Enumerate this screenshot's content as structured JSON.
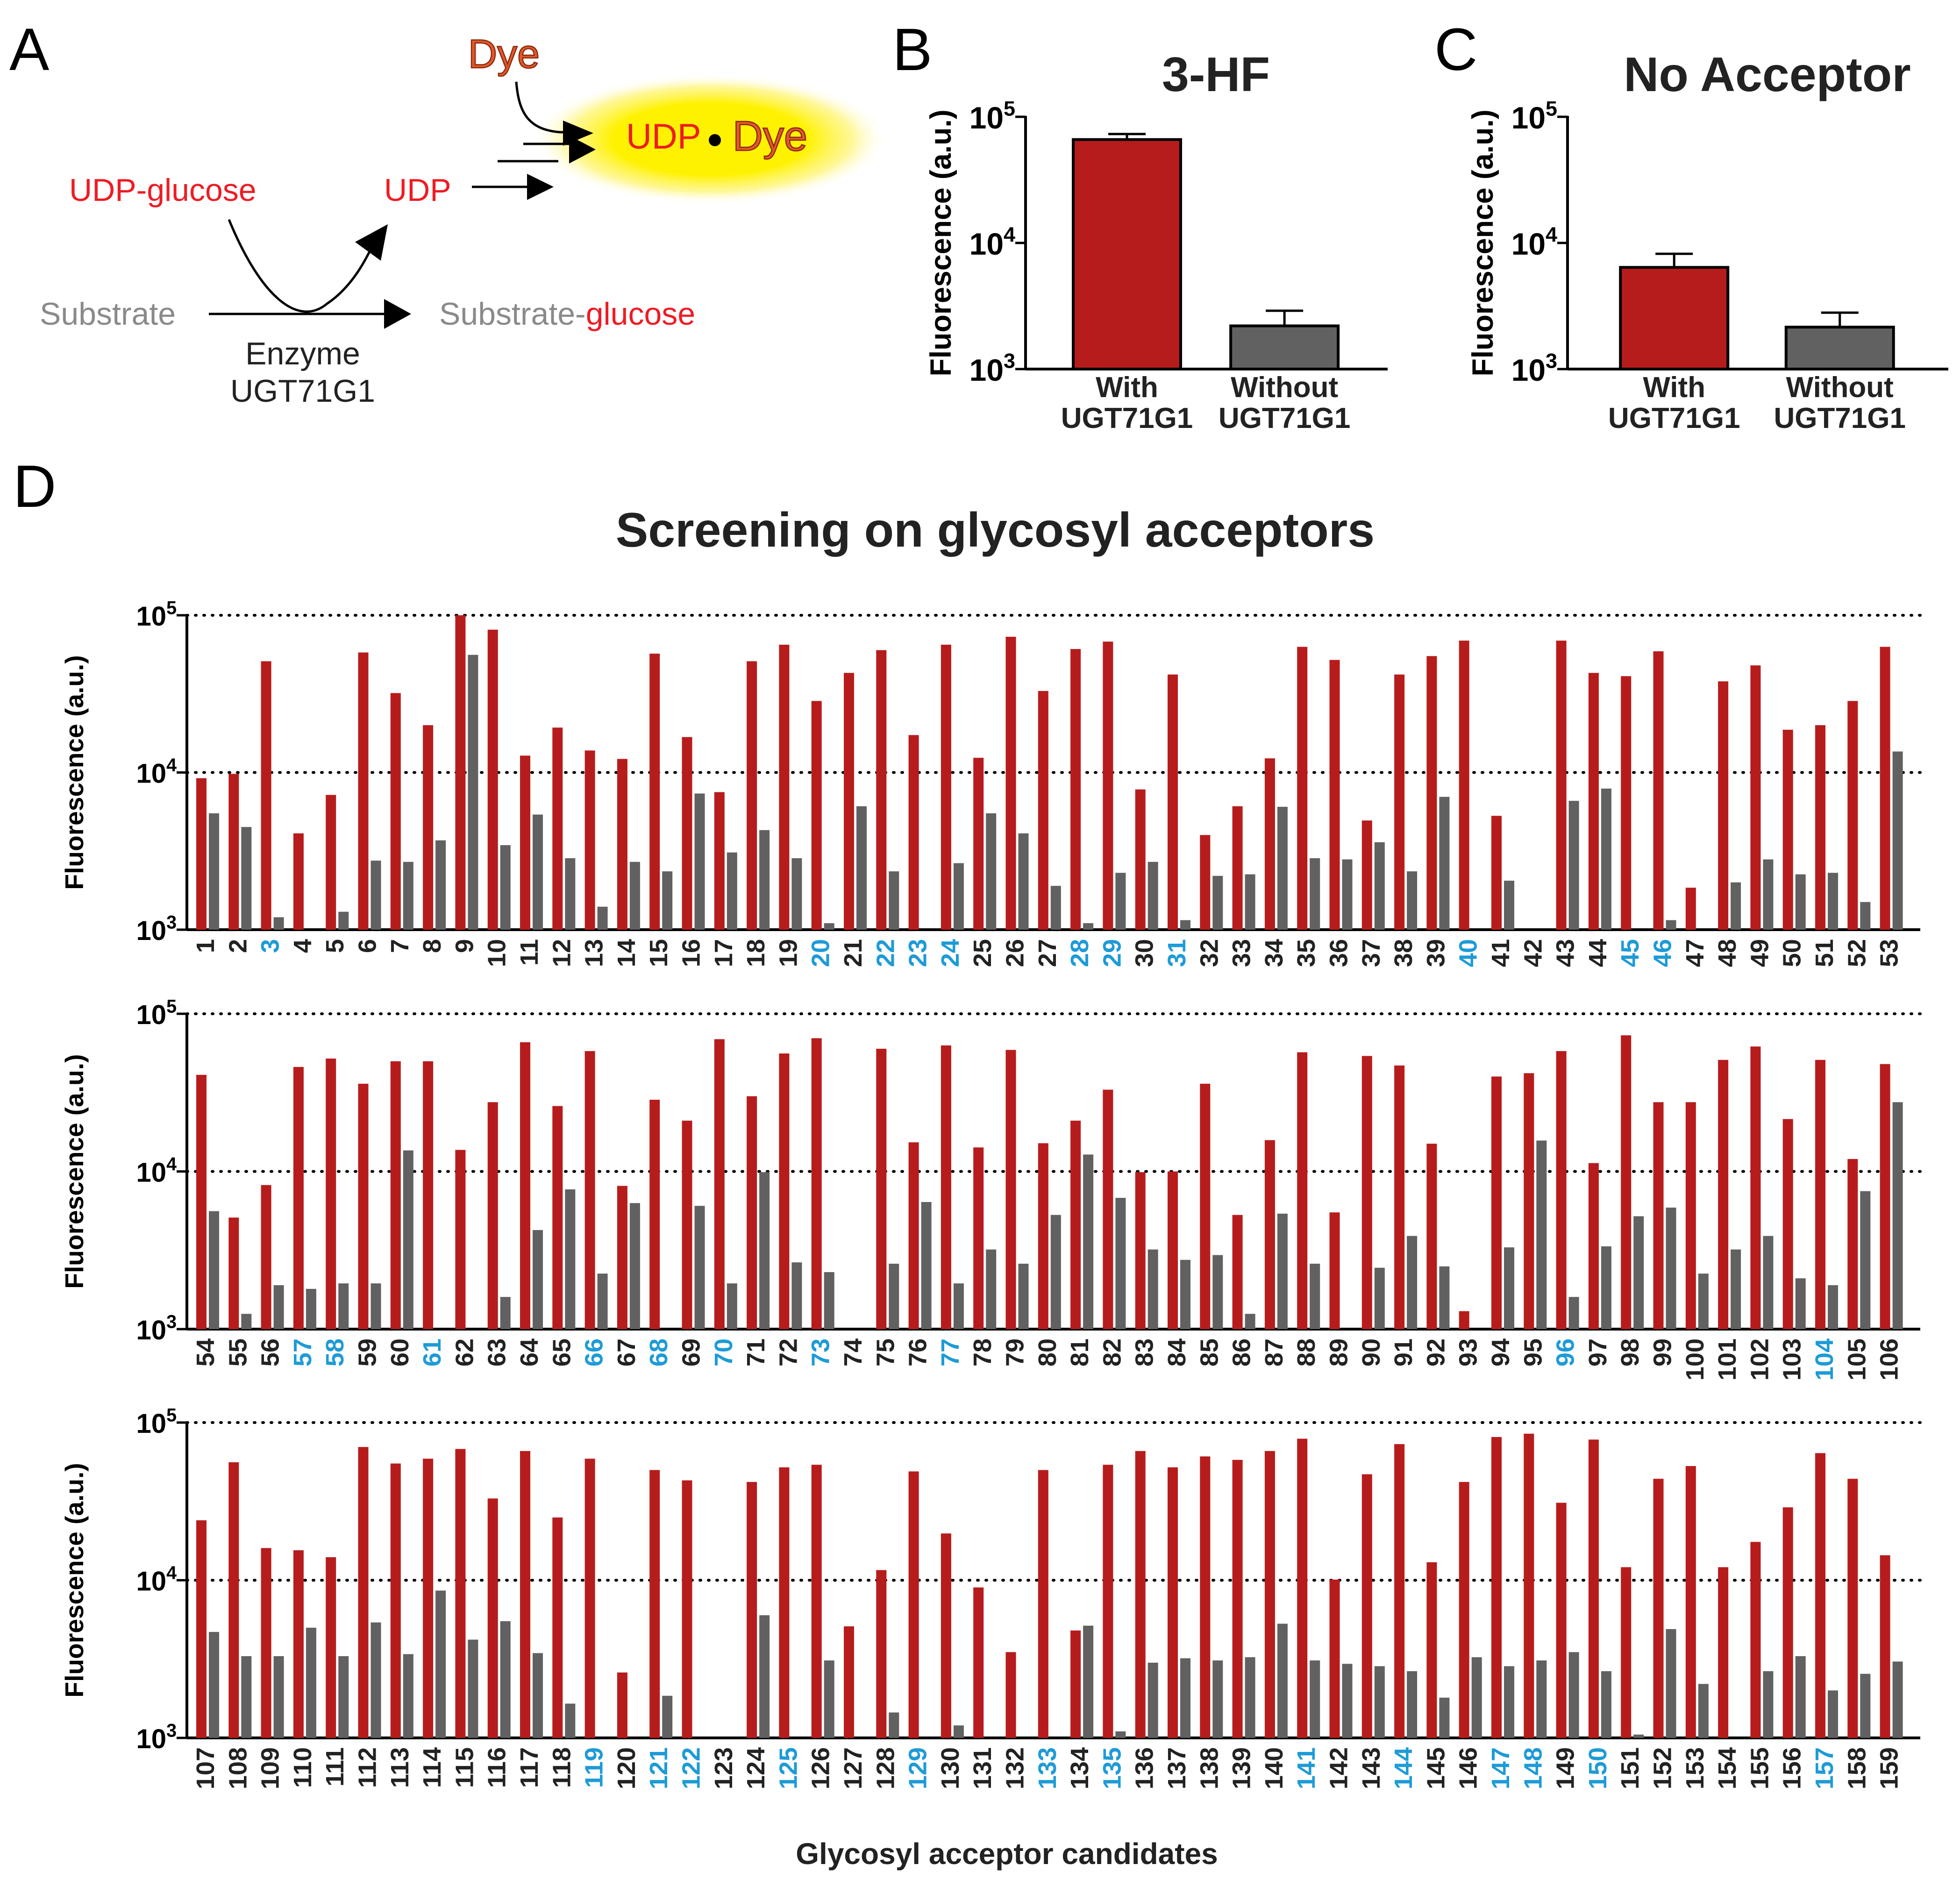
{
  "panel_labels": {
    "a": "A",
    "b": "B",
    "c": "C",
    "d": "D"
  },
  "panel_a": {
    "dye_top": "Dye",
    "udp_dye_udp": "UDP",
    "udp_dye_dot": "•",
    "udp_dye_dye": "Dye",
    "udp_glucose": "UDP-glucose",
    "udp": "UDP",
    "substrate": "Substrate",
    "product_substrate": "Substrate-",
    "product_glucose": "glucose",
    "enzyme_line1": "Enzyme",
    "enzyme_line2": "UGT71G1"
  },
  "colors": {
    "red": "#b71c1c",
    "grey": "#616161",
    "cyan": "#1e9bd7",
    "label_red": "#ee1c24",
    "label_grey": "#8a8a8a",
    "dye_orange": "#e2582a"
  },
  "d_title": "Screening on glycosyl acceptors",
  "d_xlabel": "Glycosyl acceptor candidates",
  "chart_data": [
    {
      "type": "bar",
      "panel": "B",
      "title": "3-HF",
      "ylabel": "Fluorescence (a.u.)",
      "yscale": "log",
      "ylim": [
        1000,
        100000
      ],
      "yticks": [
        {
          "base": "10",
          "exp": "3"
        },
        {
          "base": "10",
          "exp": "4"
        },
        {
          "base": "10",
          "exp": "5"
        }
      ],
      "categories": [
        [
          "With",
          "UGT71G1"
        ],
        [
          "Without",
          "UGT71G1"
        ]
      ],
      "values": [
        66000,
        2200
      ],
      "errors": [
        7000,
        700
      ]
    },
    {
      "type": "bar",
      "panel": "C",
      "title": "No Acceptor",
      "ylabel": "Fluorescence (a.u.)",
      "yscale": "log",
      "ylim": [
        1000,
        100000
      ],
      "yticks": [
        {
          "base": "10",
          "exp": "3"
        },
        {
          "base": "10",
          "exp": "4"
        },
        {
          "base": "10",
          "exp": "5"
        }
      ],
      "categories": [
        [
          "With",
          "UGT71G1"
        ],
        [
          "Without",
          "UGT71G1"
        ]
      ],
      "values": [
        6400,
        2150
      ],
      "errors": [
        1800,
        650
      ]
    },
    {
      "type": "bar",
      "panel": "D-1",
      "ylabel": "Fluorescence (a.u.)",
      "yscale": "log",
      "ylim": [
        1000,
        100000
      ],
      "yticks": [
        {
          "base": "10",
          "exp": "3"
        },
        {
          "base": "10",
          "exp": "4"
        },
        {
          "base": "10",
          "exp": "5"
        }
      ],
      "categories": [
        "1",
        "2",
        "3",
        "4",
        "5",
        "6",
        "7",
        "8",
        "9",
        "10",
        "11",
        "12",
        "13",
        "14",
        "15",
        "16",
        "17",
        "18",
        "19",
        "20",
        "21",
        "22",
        "23",
        "24",
        "25",
        "26",
        "27",
        "28",
        "29",
        "30",
        "31",
        "32",
        "33",
        "34",
        "35",
        "36",
        "37",
        "38",
        "39",
        "40",
        "41",
        "42",
        "43",
        "44",
        "45",
        "46",
        "47",
        "48",
        "49",
        "50",
        "51",
        "52",
        "53"
      ],
      "highlighted": [
        "3",
        "20",
        "22",
        "23",
        "24",
        "28",
        "29",
        "31",
        "40",
        "45",
        "46"
      ],
      "series": [
        {
          "name": "With UGT71G1",
          "values": [
            9200,
            9800,
            51000,
            4100,
            7200,
            58000,
            32000,
            20000,
            100000,
            81000,
            12800,
            19300,
            13800,
            12200,
            57000,
            16800,
            7500,
            51000,
            65000,
            28500,
            43000,
            60000,
            17300,
            65000,
            12400,
            73000,
            33000,
            61000,
            68000,
            7800,
            42000,
            4000,
            6100,
            12300,
            63000,
            52000,
            4950,
            42000,
            55000,
            69000,
            5300,
            1000,
            69000,
            43000,
            41000,
            59000,
            1850,
            38000,
            48000,
            18700,
            20000,
            28500,
            63000
          ]
        },
        {
          "name": "Without UGT71G1",
          "values": [
            5500,
            4500,
            1200,
            1000,
            1300,
            2750,
            2700,
            3700,
            56000,
            3450,
            5400,
            2850,
            1400,
            2700,
            2350,
            7350,
            3100,
            4300,
            2850,
            1100,
            6100,
            2350,
            1000,
            2650,
            5500,
            4100,
            1900,
            1100,
            2300,
            2700,
            1150,
            2200,
            2250,
            6050,
            2850,
            2800,
            3600,
            2350,
            7000,
            1000,
            2050,
            1000,
            6600,
            7900,
            1000,
            1150,
            1000,
            2000,
            2800,
            2250,
            2300,
            1500,
            13600
          ]
        }
      ]
    },
    {
      "type": "bar",
      "panel": "D-2",
      "ylabel": "Fluorescence (a.u.)",
      "yscale": "log",
      "ylim": [
        1000,
        100000
      ],
      "yticks": [
        {
          "base": "10",
          "exp": "3"
        },
        {
          "base": "10",
          "exp": "4"
        },
        {
          "base": "10",
          "exp": "5"
        }
      ],
      "categories": [
        "54",
        "55",
        "56",
        "57",
        "58",
        "59",
        "60",
        "61",
        "62",
        "63",
        "64",
        "65",
        "66",
        "67",
        "68",
        "69",
        "70",
        "71",
        "72",
        "73",
        "74",
        "75",
        "76",
        "77",
        "78",
        "79",
        "80",
        "81",
        "82",
        "83",
        "84",
        "85",
        "86",
        "87",
        "88",
        "89",
        "90",
        "91",
        "92",
        "93",
        "94",
        "95",
        "96",
        "97",
        "98",
        "99",
        "100",
        "101",
        "102",
        "103",
        "104",
        "105",
        "106"
      ],
      "highlighted": [
        "57",
        "58",
        "61",
        "66",
        "68",
        "70",
        "73",
        "77",
        "96",
        "104"
      ],
      "series": [
        {
          "name": "With UGT71G1",
          "values": [
            41000,
            5100,
            8200,
            46000,
            52000,
            36000,
            50000,
            50000,
            13700,
            27500,
            66000,
            26000,
            58000,
            8100,
            28500,
            21000,
            69000,
            30000,
            56000,
            70000,
            1000,
            60000,
            15300,
            63000,
            14200,
            59000,
            15100,
            21000,
            33000,
            9900,
            10000,
            36000,
            5300,
            15800,
            57000,
            5500,
            54000,
            47000,
            15000,
            1300,
            40000,
            42000,
            58000,
            11300,
            73000,
            27500,
            27500,
            51000,
            62000,
            21500,
            51000,
            12000,
            48000
          ]
        },
        {
          "name": "Without UGT71G1",
          "values": [
            5600,
            1250,
            1900,
            1800,
            1950,
            1950,
            13600,
            1000,
            1000,
            1600,
            4250,
            7700,
            2250,
            6300,
            1000,
            6050,
            1950,
            9900,
            2650,
            2300,
            1000,
            2600,
            6400,
            1950,
            3200,
            2600,
            5300,
            12800,
            6800,
            3200,
            2750,
            2950,
            1250,
            5400,
            2600,
            1000,
            2450,
            3900,
            2500,
            1000,
            3300,
            15700,
            1600,
            3350,
            5200,
            5900,
            2250,
            3200,
            3900,
            2100,
            1900,
            7500,
            27500
          ]
        }
      ]
    },
    {
      "type": "bar",
      "panel": "D-3",
      "ylabel": "Fluorescence (a.u.)",
      "yscale": "log",
      "ylim": [
        1000,
        100000
      ],
      "yticks": [
        {
          "base": "10",
          "exp": "3"
        },
        {
          "base": "10",
          "exp": "4"
        },
        {
          "base": "10",
          "exp": "5"
        }
      ],
      "categories": [
        "107",
        "108",
        "109",
        "110",
        "111",
        "112",
        "113",
        "114",
        "115",
        "116",
        "117",
        "118",
        "119",
        "120",
        "121",
        "122",
        "123",
        "124",
        "125",
        "126",
        "127",
        "128",
        "129",
        "130",
        "131",
        "132",
        "133",
        "134",
        "135",
        "136",
        "137",
        "138",
        "139",
        "140",
        "141",
        "142",
        "143",
        "144",
        "145",
        "146",
        "147",
        "148",
        "149",
        "150",
        "151",
        "152",
        "153",
        "154",
        "155",
        "156",
        "157",
        "158",
        "159"
      ],
      "highlighted": [
        "119",
        "121",
        "122",
        "125",
        "129",
        "133",
        "135",
        "141",
        "144",
        "147",
        "148",
        "150",
        "157"
      ],
      "series": [
        {
          "name": "With UGT71G1",
          "values": [
            24000,
            56000,
            16000,
            15500,
            14000,
            70000,
            55000,
            59000,
            68000,
            33000,
            66000,
            25000,
            59000,
            2600,
            50000,
            43000,
            1000,
            42000,
            52000,
            54000,
            5100,
            11600,
            49000,
            19800,
            9000,
            3500,
            50000,
            4800,
            54000,
            66000,
            52000,
            61000,
            58000,
            66000,
            79000,
            10100,
            47000,
            73000,
            13000,
            42000,
            81000,
            85000,
            31000,
            78000,
            12100,
            44000,
            53000,
            12100,
            17500,
            29000,
            64000,
            44000,
            14400
          ]
        },
        {
          "name": "Without UGT71G1",
          "values": [
            4700,
            3300,
            3300,
            5000,
            3300,
            5400,
            3400,
            8600,
            4200,
            5500,
            3450,
            1650,
            1000,
            1000,
            1850,
            1000,
            1000,
            6000,
            1000,
            3100,
            1000,
            1450,
            1000,
            1200,
            1000,
            1000,
            1000,
            5150,
            1100,
            3000,
            3200,
            3100,
            3250,
            5300,
            3100,
            2950,
            2850,
            2650,
            1800,
            3250,
            2850,
            3100,
            3500,
            2650,
            1050,
            4900,
            2200,
            1000,
            2650,
            3300,
            2000,
            2550,
            3050
          ]
        }
      ]
    }
  ]
}
